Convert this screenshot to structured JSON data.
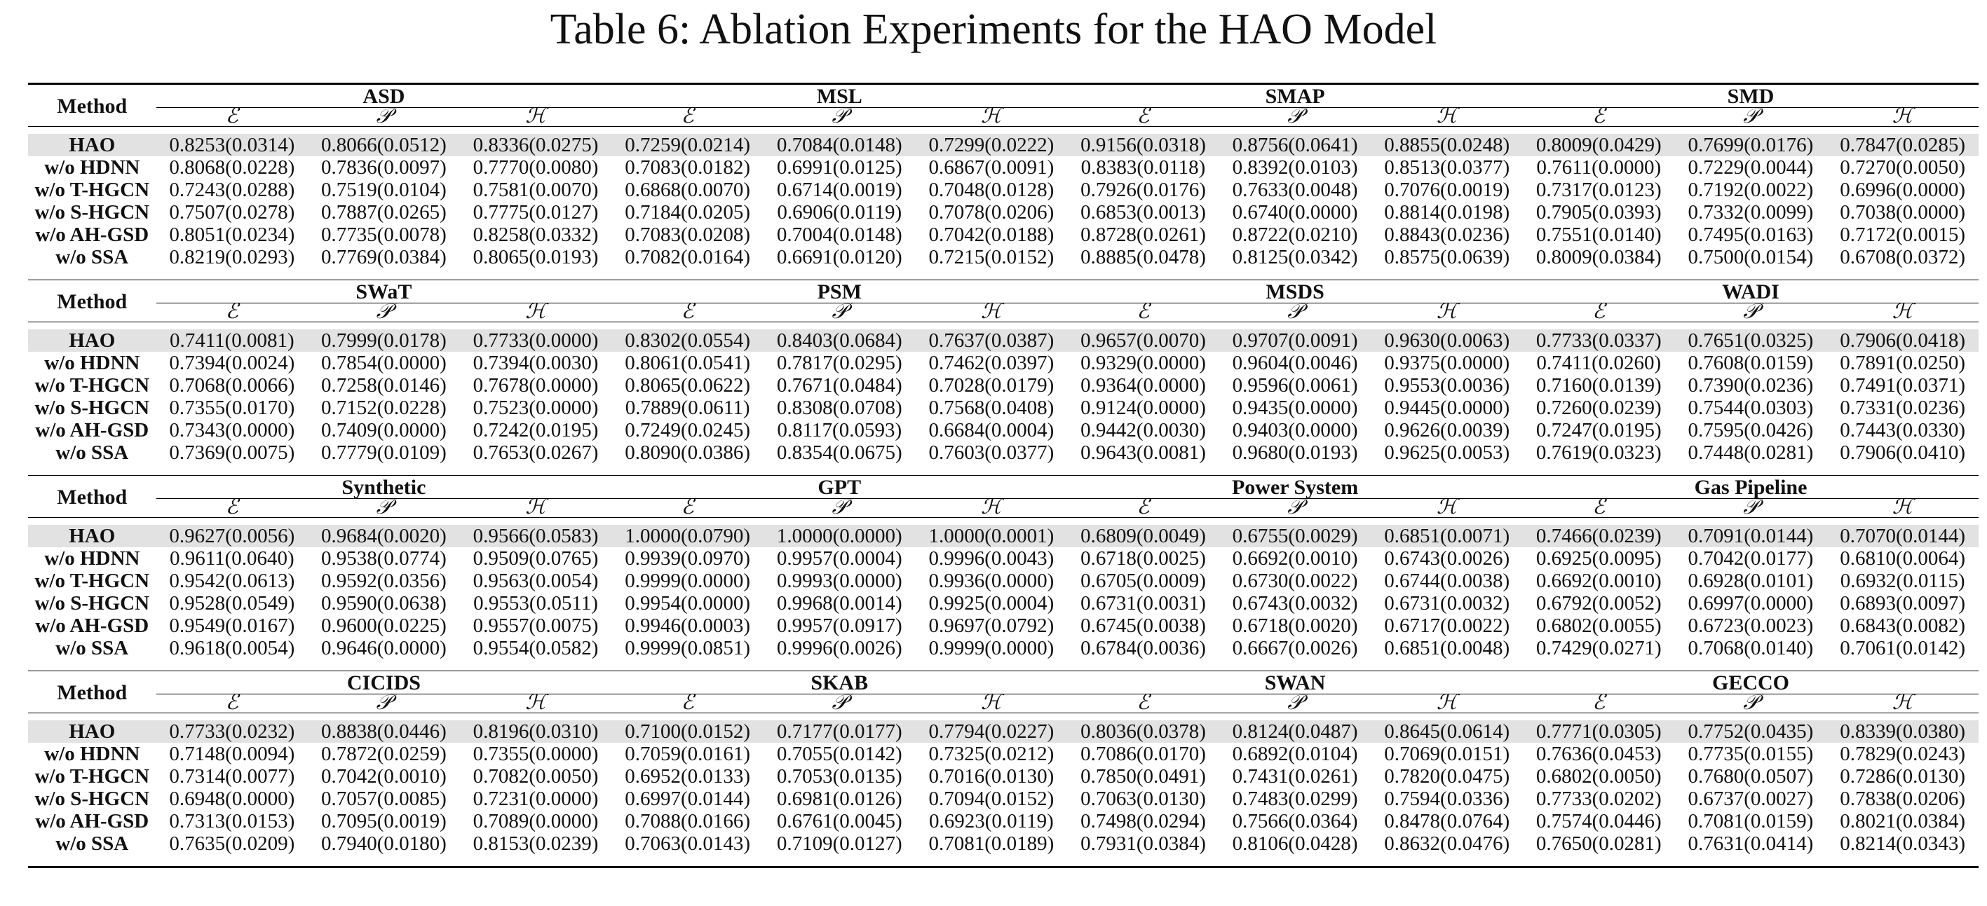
{
  "caption": "Table 6: Ablation Experiments for the HAO Model",
  "method_header": "Method",
  "metric_symbols": [
    "ℰ",
    "𝒫",
    "ℋ"
  ],
  "blocks": [
    {
      "datasets": [
        "ASD",
        "MSL",
        "SMAP",
        "SMD"
      ],
      "rows": [
        {
          "method": "HAO",
          "values": [
            "0.8253(0.0314)",
            "0.8066(0.0512)",
            "0.8336(0.0275)",
            "0.7259(0.0214)",
            "0.7084(0.0148)",
            "0.7299(0.0222)",
            "0.9156(0.0318)",
            "0.8756(0.0641)",
            "0.8855(0.0248)",
            "0.8009(0.0429)",
            "0.7699(0.0176)",
            "0.7847(0.0285)"
          ]
        },
        {
          "method": "w/o HDNN",
          "values": [
            "0.8068(0.0228)",
            "0.7836(0.0097)",
            "0.7770(0.0080)",
            "0.7083(0.0182)",
            "0.6991(0.0125)",
            "0.6867(0.0091)",
            "0.8383(0.0118)",
            "0.8392(0.0103)",
            "0.8513(0.0377)",
            "0.7611(0.0000)",
            "0.7229(0.0044)",
            "0.7270(0.0050)"
          ]
        },
        {
          "method": "w/o T-HGCN",
          "values": [
            "0.7243(0.0288)",
            "0.7519(0.0104)",
            "0.7581(0.0070)",
            "0.6868(0.0070)",
            "0.6714(0.0019)",
            "0.7048(0.0128)",
            "0.7926(0.0176)",
            "0.7633(0.0048)",
            "0.7076(0.0019)",
            "0.7317(0.0123)",
            "0.7192(0.0022)",
            "0.6996(0.0000)"
          ]
        },
        {
          "method": "w/o S-HGCN",
          "values": [
            "0.7507(0.0278)",
            "0.7887(0.0265)",
            "0.7775(0.0127)",
            "0.7184(0.0205)",
            "0.6906(0.0119)",
            "0.7078(0.0206)",
            "0.6853(0.0013)",
            "0.6740(0.0000)",
            "0.8814(0.0198)",
            "0.7905(0.0393)",
            "0.7332(0.0099)",
            "0.7038(0.0000)"
          ]
        },
        {
          "method": "w/o AH-GSD",
          "values": [
            "0.8051(0.0234)",
            "0.7735(0.0078)",
            "0.8258(0.0332)",
            "0.7083(0.0208)",
            "0.7004(0.0148)",
            "0.7042(0.0188)",
            "0.8728(0.0261)",
            "0.8722(0.0210)",
            "0.8843(0.0236)",
            "0.7551(0.0140)",
            "0.7495(0.0163)",
            "0.7172(0.0015)"
          ]
        },
        {
          "method": "w/o SSA",
          "values": [
            "0.8219(0.0293)",
            "0.7769(0.0384)",
            "0.8065(0.0193)",
            "0.7082(0.0164)",
            "0.6691(0.0120)",
            "0.7215(0.0152)",
            "0.8885(0.0478)",
            "0.8125(0.0342)",
            "0.8575(0.0639)",
            "0.8009(0.0384)",
            "0.7500(0.0154)",
            "0.6708(0.0372)"
          ]
        }
      ]
    },
    {
      "datasets": [
        "SWaT",
        "PSM",
        "MSDS",
        "WADI"
      ],
      "rows": [
        {
          "method": "HAO",
          "values": [
            "0.7411(0.0081)",
            "0.7999(0.0178)",
            "0.7733(0.0000)",
            "0.8302(0.0554)",
            "0.8403(0.0684)",
            "0.7637(0.0387)",
            "0.9657(0.0070)",
            "0.9707(0.0091)",
            "0.9630(0.0063)",
            "0.7733(0.0337)",
            "0.7651(0.0325)",
            "0.7906(0.0418)"
          ]
        },
        {
          "method": "w/o HDNN",
          "values": [
            "0.7394(0.0024)",
            "0.7854(0.0000)",
            "0.7394(0.0030)",
            "0.8061(0.0541)",
            "0.7817(0.0295)",
            "0.7462(0.0397)",
            "0.9329(0.0000)",
            "0.9604(0.0046)",
            "0.9375(0.0000)",
            "0.7411(0.0260)",
            "0.7608(0.0159)",
            "0.7891(0.0250)"
          ]
        },
        {
          "method": "w/o T-HGCN",
          "values": [
            "0.7068(0.0066)",
            "0.7258(0.0146)",
            "0.7678(0.0000)",
            "0.8065(0.0622)",
            "0.7671(0.0484)",
            "0.7028(0.0179)",
            "0.9364(0.0000)",
            "0.9596(0.0061)",
            "0.9553(0.0036)",
            "0.7160(0.0139)",
            "0.7390(0.0236)",
            "0.7491(0.0371)"
          ]
        },
        {
          "method": "w/o S-HGCN",
          "values": [
            "0.7355(0.0170)",
            "0.7152(0.0228)",
            "0.7523(0.0000)",
            "0.7889(0.0611)",
            "0.8308(0.0708)",
            "0.7568(0.0408)",
            "0.9124(0.0000)",
            "0.9435(0.0000)",
            "0.9445(0.0000)",
            "0.7260(0.0239)",
            "0.7544(0.0303)",
            "0.7331(0.0236)"
          ]
        },
        {
          "method": "w/o AH-GSD",
          "values": [
            "0.7343(0.0000)",
            "0.7409(0.0000)",
            "0.7242(0.0195)",
            "0.7249(0.0245)",
            "0.8117(0.0593)",
            "0.6684(0.0004)",
            "0.9442(0.0030)",
            "0.9403(0.0000)",
            "0.9626(0.0039)",
            "0.7247(0.0195)",
            "0.7595(0.0426)",
            "0.7443(0.0330)"
          ]
        },
        {
          "method": "w/o SSA",
          "values": [
            "0.7369(0.0075)",
            "0.7779(0.0109)",
            "0.7653(0.0267)",
            "0.8090(0.0386)",
            "0.8354(0.0675)",
            "0.7603(0.0377)",
            "0.9643(0.0081)",
            "0.9680(0.0193)",
            "0.9625(0.0053)",
            "0.7619(0.0323)",
            "0.7448(0.0281)",
            "0.7906(0.0410)"
          ]
        }
      ]
    },
    {
      "datasets": [
        "Synthetic",
        "GPT",
        "Power System",
        "Gas Pipeline"
      ],
      "rows": [
        {
          "method": "HAO",
          "values": [
            "0.9627(0.0056)",
            "0.9684(0.0020)",
            "0.9566(0.0583)",
            "1.0000(0.0790)",
            "1.0000(0.0000)",
            "1.0000(0.0001)",
            "0.6809(0.0049)",
            "0.6755(0.0029)",
            "0.6851(0.0071)",
            "0.7466(0.0239)",
            "0.7091(0.0144)",
            "0.7070(0.0144)"
          ]
        },
        {
          "method": "w/o HDNN",
          "values": [
            "0.9611(0.0640)",
            "0.9538(0.0774)",
            "0.9509(0.0765)",
            "0.9939(0.0970)",
            "0.9957(0.0004)",
            "0.9996(0.0043)",
            "0.6718(0.0025)",
            "0.6692(0.0010)",
            "0.6743(0.0026)",
            "0.6925(0.0095)",
            "0.7042(0.0177)",
            "0.6810(0.0064)"
          ]
        },
        {
          "method": "w/o T-HGCN",
          "values": [
            "0.9542(0.0613)",
            "0.9592(0.0356)",
            "0.9563(0.0054)",
            "0.9999(0.0000)",
            "0.9993(0.0000)",
            "0.9936(0.0000)",
            "0.6705(0.0009)",
            "0.6730(0.0022)",
            "0.6744(0.0038)",
            "0.6692(0.0010)",
            "0.6928(0.0101)",
            "0.6932(0.0115)"
          ]
        },
        {
          "method": "w/o S-HGCN",
          "values": [
            "0.9528(0.0549)",
            "0.9590(0.0638)",
            "0.9553(0.0511)",
            "0.9954(0.0000)",
            "0.9968(0.0014)",
            "0.9925(0.0004)",
            "0.6731(0.0031)",
            "0.6743(0.0032)",
            "0.6731(0.0032)",
            "0.6792(0.0052)",
            "0.6997(0.0000)",
            "0.6893(0.0097)"
          ]
        },
        {
          "method": "w/o AH-GSD",
          "values": [
            "0.9549(0.0167)",
            "0.9600(0.0225)",
            "0.9557(0.0075)",
            "0.9946(0.0003)",
            "0.9957(0.0917)",
            "0.9697(0.0792)",
            "0.6745(0.0038)",
            "0.6718(0.0020)",
            "0.6717(0.0022)",
            "0.6802(0.0055)",
            "0.6723(0.0023)",
            "0.6843(0.0082)"
          ]
        },
        {
          "method": "w/o SSA",
          "values": [
            "0.9618(0.0054)",
            "0.9646(0.0000)",
            "0.9554(0.0582)",
            "0.9999(0.0851)",
            "0.9996(0.0026)",
            "0.9999(0.0000)",
            "0.6784(0.0036)",
            "0.6667(0.0026)",
            "0.6851(0.0048)",
            "0.7429(0.0271)",
            "0.7068(0.0140)",
            "0.7061(0.0142)"
          ]
        }
      ]
    },
    {
      "datasets": [
        "CICIDS",
        "SKAB",
        "SWAN",
        "GECCO"
      ],
      "rows": [
        {
          "method": "HAO",
          "values": [
            "0.7733(0.0232)",
            "0.8838(0.0446)",
            "0.8196(0.0310)",
            "0.7100(0.0152)",
            "0.7177(0.0177)",
            "0.7794(0.0227)",
            "0.8036(0.0378)",
            "0.8124(0.0487)",
            "0.8645(0.0614)",
            "0.7771(0.0305)",
            "0.7752(0.0435)",
            "0.8339(0.0380)"
          ]
        },
        {
          "method": "w/o HDNN",
          "values": [
            "0.7148(0.0094)",
            "0.7872(0.0259)",
            "0.7355(0.0000)",
            "0.7059(0.0161)",
            "0.7055(0.0142)",
            "0.7325(0.0212)",
            "0.7086(0.0170)",
            "0.6892(0.0104)",
            "0.7069(0.0151)",
            "0.7636(0.0453)",
            "0.7735(0.0155)",
            "0.7829(0.0243)"
          ]
        },
        {
          "method": "w/o T-HGCN",
          "values": [
            "0.7314(0.0077)",
            "0.7042(0.0010)",
            "0.7082(0.0050)",
            "0.6952(0.0133)",
            "0.7053(0.0135)",
            "0.7016(0.0130)",
            "0.7850(0.0491)",
            "0.7431(0.0261)",
            "0.7820(0.0475)",
            "0.6802(0.0050)",
            "0.7680(0.0507)",
            "0.7286(0.0130)"
          ]
        },
        {
          "method": "w/o S-HGCN",
          "values": [
            "0.6948(0.0000)",
            "0.7057(0.0085)",
            "0.7231(0.0000)",
            "0.6997(0.0144)",
            "0.6981(0.0126)",
            "0.7094(0.0152)",
            "0.7063(0.0130)",
            "0.7483(0.0299)",
            "0.7594(0.0336)",
            "0.7733(0.0202)",
            "0.6737(0.0027)",
            "0.7838(0.0206)"
          ]
        },
        {
          "method": "w/o AH-GSD",
          "values": [
            "0.7313(0.0153)",
            "0.7095(0.0019)",
            "0.7089(0.0000)",
            "0.7088(0.0166)",
            "0.6761(0.0045)",
            "0.6923(0.0119)",
            "0.7498(0.0294)",
            "0.7566(0.0364)",
            "0.8478(0.0764)",
            "0.7574(0.0446)",
            "0.7081(0.0159)",
            "0.8021(0.0384)"
          ]
        },
        {
          "method": "w/o SSA",
          "values": [
            "0.7635(0.0209)",
            "0.7940(0.0180)",
            "0.8153(0.0239)",
            "0.7063(0.0143)",
            "0.7109(0.0127)",
            "0.7081(0.0189)",
            "0.7931(0.0384)",
            "0.8106(0.0428)",
            "0.8632(0.0476)",
            "0.7650(0.0281)",
            "0.7631(0.0414)",
            "0.8214(0.0343)"
          ]
        }
      ]
    }
  ]
}
